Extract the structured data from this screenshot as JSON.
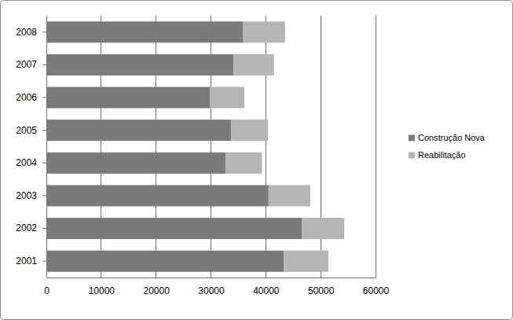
{
  "chart_data": {
    "type": "bar",
    "orientation": "horizontal",
    "stacked": true,
    "grid": true,
    "legend": "right",
    "categories": [
      "2001",
      "2002",
      "2003",
      "2004",
      "2005",
      "2006",
      "2007",
      "2008"
    ],
    "series": [
      {
        "name": "Construção Nova",
        "color": "#7a7a7a",
        "values": [
          43300,
          46600,
          40500,
          32700,
          33700,
          29800,
          34100,
          35800
        ]
      },
      {
        "name": "Reabilitação",
        "color": "#b5b5b5",
        "values": [
          8100,
          7700,
          7600,
          6600,
          6700,
          6300,
          7400,
          7700
        ]
      }
    ],
    "xlim": [
      0,
      60000
    ],
    "xticks": [
      0,
      10000,
      20000,
      30000,
      40000,
      50000,
      60000
    ]
  }
}
